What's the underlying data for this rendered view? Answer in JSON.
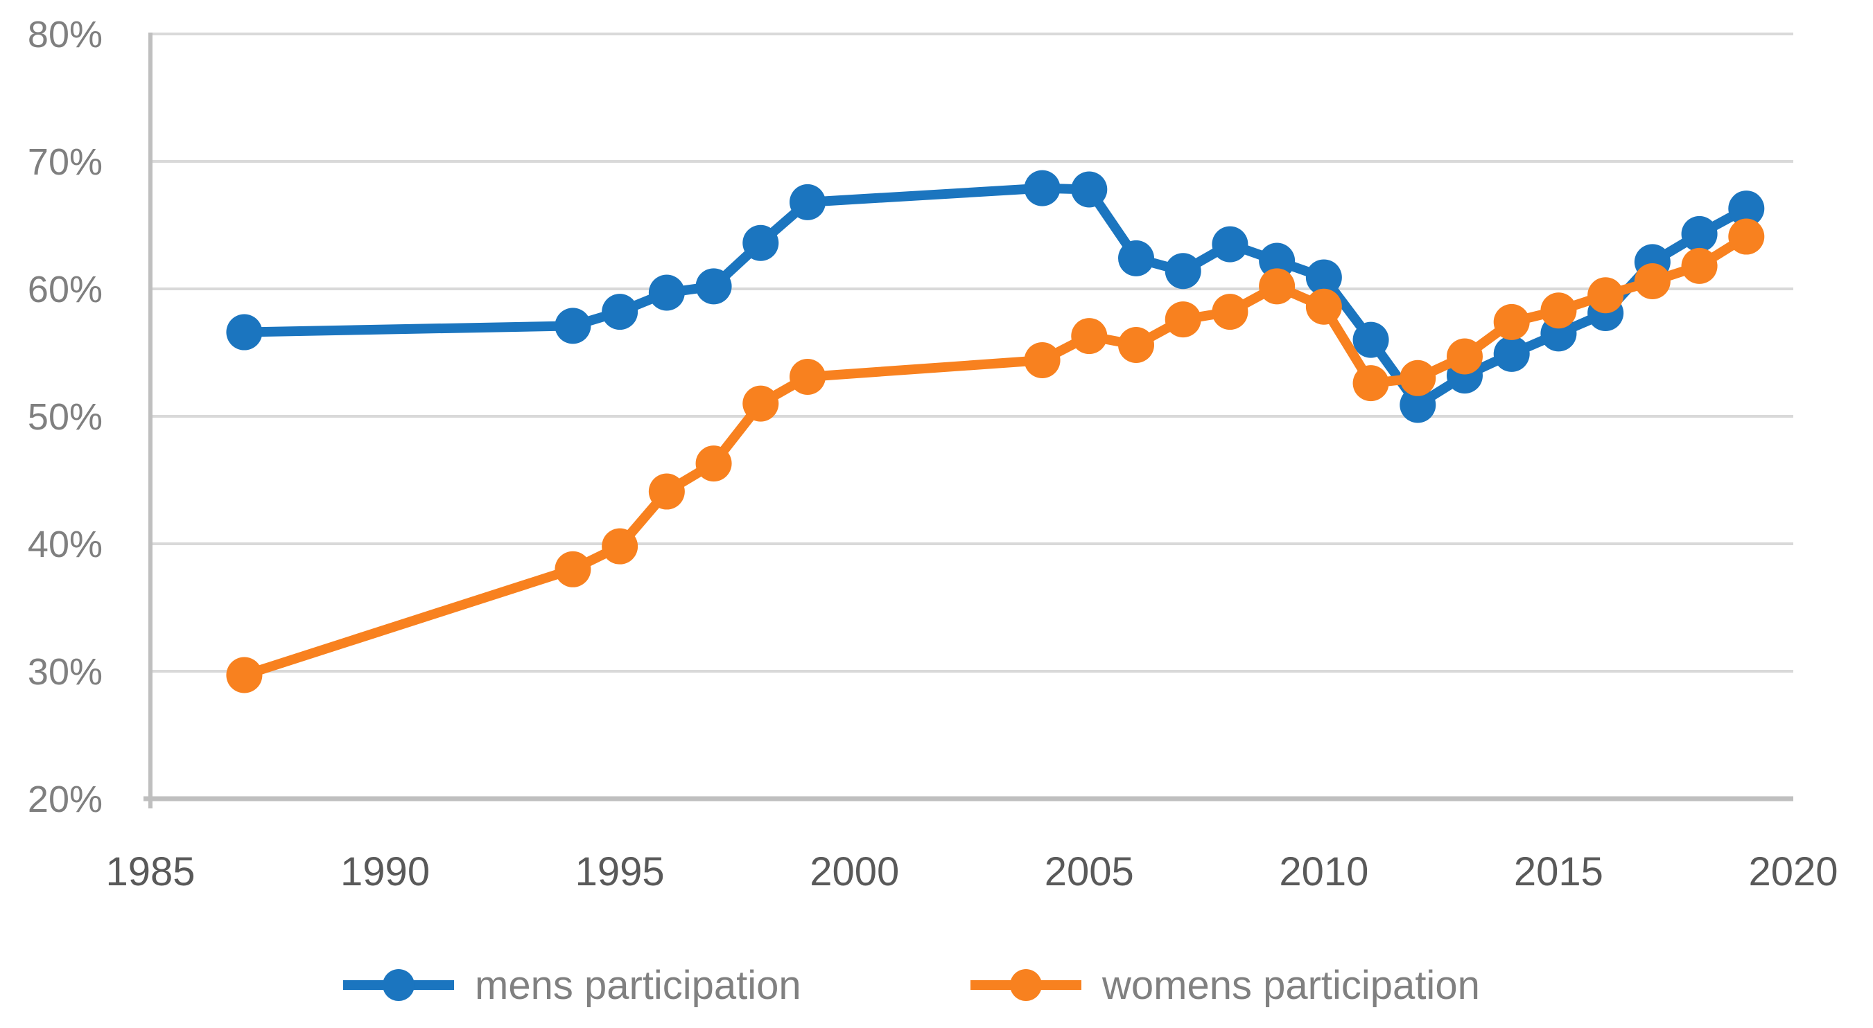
{
  "chart_data": {
    "type": "line",
    "title": "",
    "xlabel": "",
    "ylabel": "",
    "grid": true,
    "legend_position": "bottom",
    "x": [
      1987,
      1994,
      1995,
      1996,
      1997,
      1998,
      1999,
      2004,
      2005,
      2006,
      2007,
      2008,
      2009,
      2010,
      2011,
      2012,
      2013,
      2014,
      2015,
      2016,
      2017,
      2018,
      2019
    ],
    "series": [
      {
        "name": "mens participation",
        "color": "#1b75bf",
        "values": [
          56.6,
          57.1,
          58.2,
          59.7,
          60.2,
          63.6,
          66.8,
          67.9,
          67.8,
          62.4,
          61.4,
          63.5,
          62.2,
          60.9,
          56.0,
          50.9,
          53.2,
          54.9,
          56.5,
          58.1,
          62.1,
          64.3,
          66.3
        ]
      },
      {
        "name": "womens participation",
        "color": "#f8811f",
        "values": [
          29.7,
          38.0,
          39.8,
          44.1,
          46.3,
          51.0,
          53.1,
          54.4,
          56.3,
          55.6,
          57.6,
          58.2,
          60.2,
          58.6,
          52.6,
          53.0,
          54.7,
          57.4,
          58.3,
          59.5,
          60.6,
          61.8,
          64.1
        ]
      }
    ],
    "x_axis": {
      "min": 1985,
      "max": 2020,
      "tick_labels": [
        "1985",
        "1990",
        "1995",
        "2000",
        "2005",
        "2010",
        "2015",
        "2020"
      ],
      "tick_values": [
        1985,
        1990,
        1995,
        2000,
        2005,
        2010,
        2015,
        2020
      ]
    },
    "y_axis": {
      "min": 20,
      "max": 80,
      "tick_labels": [
        "80%",
        "70%",
        "60%",
        "50%",
        "40%",
        "30%",
        "20%"
      ],
      "tick_values": [
        80,
        70,
        60,
        50,
        40,
        30,
        20
      ]
    },
    "colors": {
      "gridline": "#d9d9d9",
      "axis_line": "#bfbfbf",
      "y_tick_text": "#7f7f7f",
      "x_tick_text": "#595959",
      "legend_text": "#808080",
      "background": "#ffffff"
    }
  }
}
